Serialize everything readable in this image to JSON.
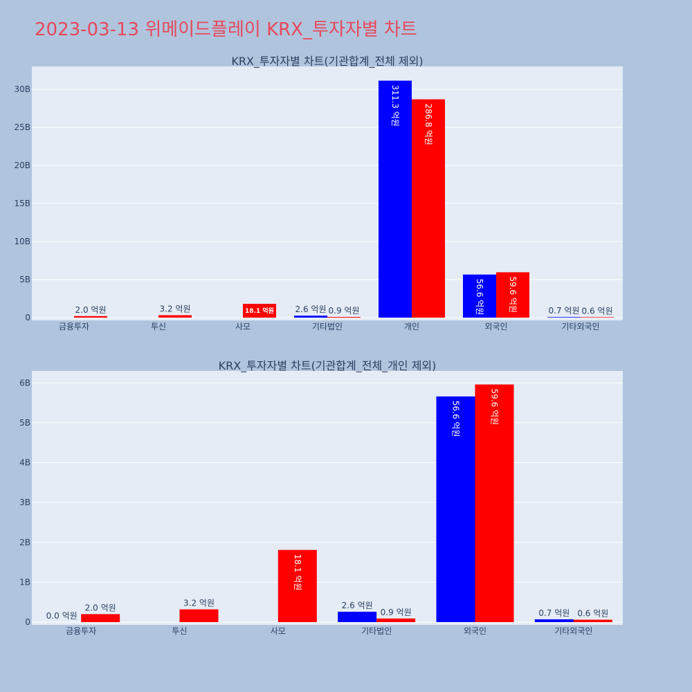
{
  "page": {
    "title": "2023-03-13 위메이드플레이 KRX_투자자별 차트"
  },
  "colors": {
    "buy": "#0000ff",
    "sell": "#ff0000",
    "plot_bg": "#e5ecf6",
    "grid": "#ffffff",
    "page_bg": "#b0c4de",
    "title": "#e8485a"
  },
  "chart_data": [
    {
      "type": "bar",
      "title": "KRX_투자자별 차트(기관합계_전체 제외)",
      "categories": [
        "금융투자",
        "투신",
        "사모",
        "기타법인",
        "개인",
        "외국인",
        "기타외국인"
      ],
      "y_ticks": [
        "0",
        "5B",
        "10B",
        "15B",
        "20B",
        "25B",
        "30B"
      ],
      "ylim": [
        0,
        33000000000
      ],
      "grid": true,
      "series": [
        {
          "color": "#0000ff",
          "values": [
            0,
            0,
            0,
            260000000,
            31130000000,
            5660000000,
            70000000
          ],
          "labels": [
            "",
            "",
            "",
            "2.6 억원",
            "311.3 억원",
            "56.6 억원",
            "0.7 억원"
          ]
        },
        {
          "color": "#ff0000",
          "values": [
            200000000,
            320000000,
            1810000000,
            90000000,
            28680000000,
            5960000000,
            60000000
          ],
          "labels": [
            "2.0 억원",
            "3.2 억원",
            "18.1 억원",
            "0.9 억원",
            "286.8 억원",
            "59.6 억원",
            "0.6 억원"
          ]
        }
      ]
    },
    {
      "type": "bar",
      "title": "KRX_투자자별 차트(기관합계_전체_개인 제외)",
      "categories": [
        "금융투자",
        "투신",
        "사모",
        "기타법인",
        "외국인",
        "기타외국인"
      ],
      "y_ticks": [
        "0",
        "1B",
        "2B",
        "3B",
        "4B",
        "5B",
        "6B"
      ],
      "ylim": [
        0,
        6300000000
      ],
      "grid": true,
      "series": [
        {
          "color": "#0000ff",
          "values": [
            0,
            0,
            0,
            260000000,
            5660000000,
            70000000
          ],
          "labels": [
            "0.0 억원",
            "",
            "",
            "2.6 억원",
            "56.6 억원",
            "0.7 억원"
          ]
        },
        {
          "color": "#ff0000",
          "values": [
            200000000,
            320000000,
            1810000000,
            90000000,
            5960000000,
            60000000
          ],
          "labels": [
            "2.0 억원",
            "3.2 억원",
            "18.1 억원",
            "0.9 억원",
            "59.6 억원",
            "0.6 억원"
          ]
        }
      ]
    }
  ]
}
